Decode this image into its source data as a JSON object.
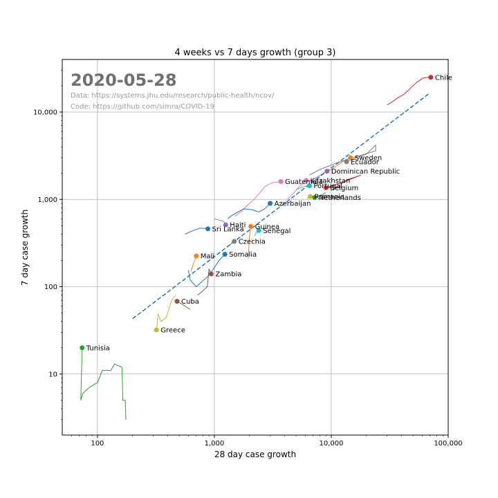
{
  "chart_data": {
    "type": "scatter",
    "title": "4 weeks vs 7 days growth (group 3)",
    "xlabel": "28 day case growth",
    "ylabel": "7 day case growth",
    "date_label": "2020-05-28",
    "data_source": "Data: https://systems.jhu.edu/research/public-health/ncov/",
    "code_source": "Code: https://github.com/simra/COVID-19",
    "x_scale": "log",
    "y_scale": "log",
    "xlim": [
      50,
      100000
    ],
    "ylim": [
      2,
      40000
    ],
    "grid": true,
    "x_ticks": [
      {
        "value": 100,
        "label": "100"
      },
      {
        "value": 1000,
        "label": "1,000"
      },
      {
        "value": 10000,
        "label": "10,000"
      },
      {
        "value": 100000,
        "label": "100,000"
      }
    ],
    "y_ticks": [
      {
        "value": 10,
        "label": "10"
      },
      {
        "value": 100,
        "label": "100"
      },
      {
        "value": 1000,
        "label": "1,000"
      },
      {
        "value": 10000,
        "label": "10,000"
      }
    ],
    "trend_line": {
      "x": [
        200,
        70000
      ],
      "y": [
        43,
        16600
      ],
      "color": "#1f77b4"
    },
    "series": [
      {
        "name": "Chile",
        "color": "#d62728",
        "x": 71000,
        "y": 25000,
        "trail": [
          [
            30000,
            12000
          ],
          [
            33000,
            13000
          ],
          [
            37000,
            14500
          ],
          [
            42000,
            16000
          ],
          [
            48000,
            19000
          ],
          [
            54000,
            22000
          ],
          [
            61000,
            24500
          ],
          [
            67000,
            25000
          ],
          [
            71000,
            25000
          ]
        ]
      },
      {
        "name": "Sweden",
        "color": "#ff7f0e",
        "x": 14600,
        "y": 3000,
        "trail": [
          [
            9000,
            2000
          ],
          [
            11000,
            2400
          ],
          [
            13000,
            2800
          ],
          [
            14600,
            3000
          ]
        ]
      },
      {
        "name": "Ecuador",
        "color": "#7f7f7f",
        "x": 13500,
        "y": 2700,
        "trail": [
          [
            6500,
            1900
          ],
          [
            8000,
            2200
          ],
          [
            11000,
            2600
          ],
          [
            14000,
            2900
          ],
          [
            18000,
            3200
          ],
          [
            24000,
            3600
          ],
          [
            24000,
            4200
          ],
          [
            20000,
            3300
          ],
          [
            13500,
            2700
          ]
        ]
      },
      {
        "name": "Dominican Republic",
        "color": "#9467bd",
        "x": 9200,
        "y": 2100,
        "trail": [
          [
            7000,
            1700
          ],
          [
            7800,
            1850
          ],
          [
            8600,
            2000
          ],
          [
            9200,
            2100
          ]
        ]
      },
      {
        "name": "Kazakhstan",
        "color": "#e377c2",
        "x": 6100,
        "y": 1650,
        "trail": [
          [
            4200,
            1000
          ],
          [
            4800,
            1200
          ],
          [
            5300,
            1400
          ],
          [
            5800,
            1550
          ],
          [
            6100,
            1650
          ]
        ]
      },
      {
        "name": "Portugal",
        "color": "#17becf",
        "x": 6500,
        "y": 1430,
        "trail": [
          [
            5000,
            1300
          ],
          [
            5800,
            1400
          ],
          [
            6500,
            1430
          ]
        ]
      },
      {
        "name": "Belgium",
        "color": "#d62728",
        "x": 9000,
        "y": 1360,
        "trail": [
          [
            12000,
            1500
          ],
          [
            14000,
            1700
          ],
          [
            16000,
            1800
          ],
          [
            18000,
            1900
          ],
          [
            13000,
            1600
          ],
          [
            10500,
            1450
          ],
          [
            9000,
            1360
          ]
        ]
      },
      {
        "name": "Romania",
        "color": "#bcbd22",
        "x": 6600,
        "y": 1080,
        "trail": [
          [
            6200,
            1020
          ],
          [
            6400,
            1050
          ],
          [
            6600,
            1080
          ]
        ]
      },
      {
        "name": "Netherlands",
        "color": "#2ca02c",
        "x": 7200,
        "y": 1050,
        "trail": [
          [
            9000,
            1200
          ],
          [
            8200,
            1120
          ],
          [
            7600,
            1080
          ],
          [
            7200,
            1050
          ]
        ]
      },
      {
        "name": "Guatemala",
        "color": "#e377c2",
        "x": 3700,
        "y": 1600,
        "trail": [
          [
            1500,
            640
          ],
          [
            1700,
            730
          ],
          [
            1900,
            850
          ],
          [
            2100,
            950
          ],
          [
            2400,
            1150
          ],
          [
            2700,
            1400
          ],
          [
            3100,
            1550
          ],
          [
            3700,
            1600
          ]
        ]
      },
      {
        "name": "Azerbaijan",
        "color": "#1f77b4",
        "x": 3000,
        "y": 900,
        "trail": [
          [
            1300,
            600
          ],
          [
            1400,
            650
          ],
          [
            1600,
            720
          ],
          [
            1800,
            780
          ],
          [
            2100,
            760
          ],
          [
            2400,
            720
          ],
          [
            2700,
            780
          ],
          [
            3000,
            900
          ]
        ]
      },
      {
        "name": "Haiti",
        "color": "#9467bd",
        "x": 1250,
        "y": 510,
        "trail": [
          [
            1000,
            600
          ],
          [
            1200,
            560
          ],
          [
            1250,
            510
          ]
        ]
      },
      {
        "name": "Sri Lanka",
        "color": "#1f77b4",
        "x": 880,
        "y": 460,
        "trail": [
          [
            560,
            400
          ],
          [
            660,
            440
          ],
          [
            760,
            470
          ],
          [
            880,
            460
          ]
        ]
      },
      {
        "name": "Guinea",
        "color": "#ff7f0e",
        "x": 2050,
        "y": 490,
        "trail": [
          [
            1950,
            210
          ],
          [
            1980,
            330
          ],
          [
            2020,
            420
          ],
          [
            2050,
            490
          ]
        ]
      },
      {
        "name": "Senegal",
        "color": "#17becf",
        "x": 2400,
        "y": 440,
        "trail": [
          [
            2200,
            380
          ],
          [
            2300,
            420
          ],
          [
            2400,
            440
          ]
        ]
      },
      {
        "name": "Czechia",
        "color": "#7f7f7f",
        "x": 1480,
        "y": 330,
        "trail": [
          [
            1350,
            300
          ],
          [
            1400,
            315
          ],
          [
            1480,
            330
          ]
        ]
      },
      {
        "name": "Somalia",
        "color": "#1f77b4",
        "x": 1230,
        "y": 235,
        "trail": [
          [
            600,
            155
          ],
          [
            620,
            120
          ],
          [
            700,
            100
          ],
          [
            900,
            135
          ],
          [
            1100,
            200
          ],
          [
            1230,
            235
          ]
        ]
      },
      {
        "name": "Mali",
        "color": "#ff7f0e",
        "x": 700,
        "y": 225,
        "trail": [
          [
            630,
            150
          ],
          [
            660,
            180
          ],
          [
            700,
            225
          ]
        ]
      },
      {
        "name": "Zambia",
        "color": "#8c564b",
        "x": 940,
        "y": 140,
        "trail": [
          [
            720,
            80
          ],
          [
            800,
            90
          ],
          [
            870,
            100
          ],
          [
            900,
            160
          ],
          [
            940,
            140
          ]
        ]
      },
      {
        "name": "Cuba",
        "color": "#8c564b",
        "x": 480,
        "y": 68,
        "trail": [
          [
            620,
            55
          ],
          [
            560,
            60
          ],
          [
            520,
            64
          ],
          [
            480,
            68
          ]
        ]
      },
      {
        "name": "Greece",
        "color": "#bcbd22",
        "x": 320,
        "y": 32,
        "trail": [
          [
            470,
            80
          ],
          [
            430,
            70
          ],
          [
            390,
            45
          ],
          [
            350,
            40
          ],
          [
            330,
            48
          ],
          [
            320,
            32
          ]
        ]
      },
      {
        "name": "Tunisia",
        "color": "#2ca02c",
        "x": 74,
        "y": 20,
        "trail": [
          [
            175,
            3
          ],
          [
            173,
            5
          ],
          [
            165,
            5
          ],
          [
            162,
            12
          ],
          [
            140,
            13
          ],
          [
            130,
            11
          ],
          [
            110,
            11
          ],
          [
            100,
            8
          ],
          [
            85,
            7
          ],
          [
            75,
            6
          ],
          [
            72,
            5
          ],
          [
            74,
            20
          ]
        ]
      }
    ]
  }
}
